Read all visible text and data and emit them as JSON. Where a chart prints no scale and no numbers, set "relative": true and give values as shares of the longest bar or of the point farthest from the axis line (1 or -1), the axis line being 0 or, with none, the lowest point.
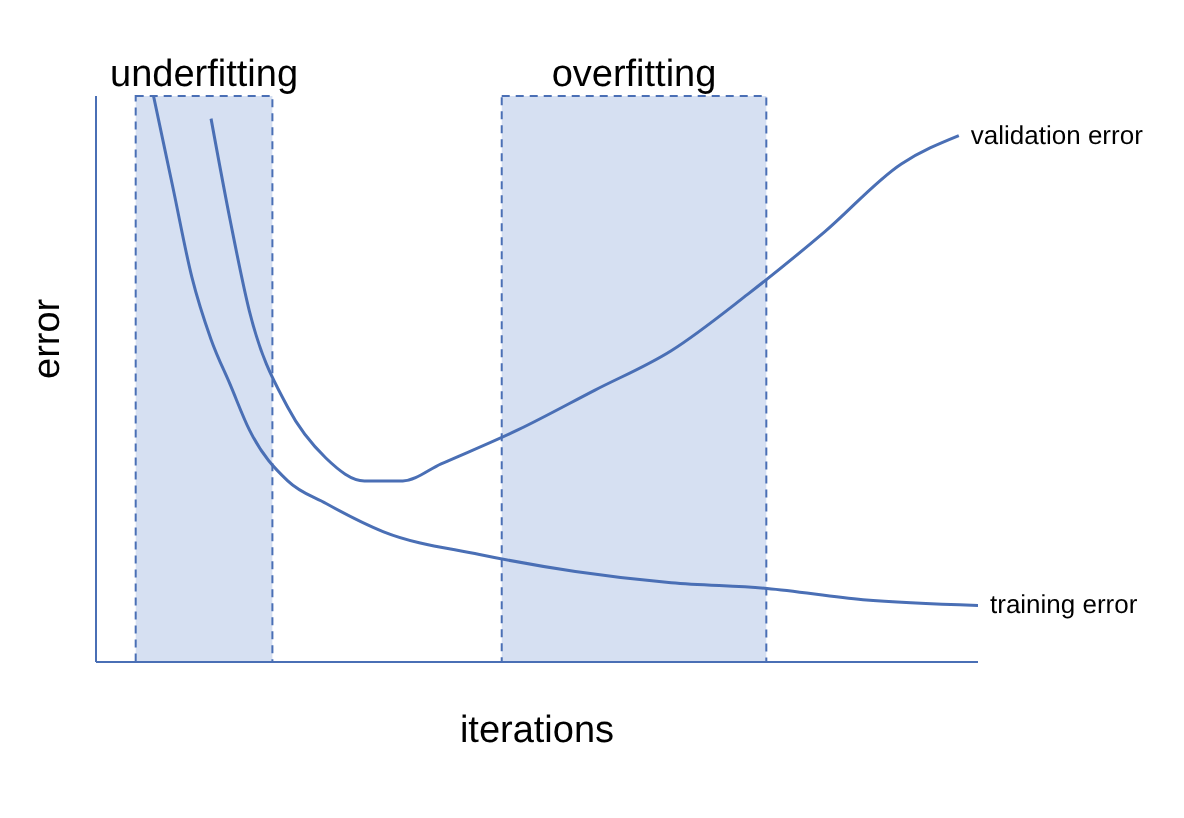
{
  "chart_data": {
    "type": "line",
    "relative": true,
    "xlabel": "iterations",
    "ylabel": "error",
    "legend": false,
    "grid": false,
    "tick_labels": false,
    "categories": [
      null,
      null,
      null,
      null,
      null,
      null,
      null,
      null,
      null,
      null,
      null,
      null,
      null,
      null,
      null,
      null,
      null,
      null,
      null,
      null,
      null,
      null,
      null,
      null,
      null,
      null,
      null,
      null,
      null,
      null,
      null,
      null,
      null,
      null,
      null,
      null,
      null,
      null,
      null,
      null,
      null,
      null,
      null,
      null,
      null,
      null,
      null
    ],
    "series": [
      {
        "name": "validation error",
        "color": "#4a6fb5",
        "values": [
          null,
          null,
          null,
          null,
          null,
          null,
          0.96,
          0.78,
          0.62,
          null,
          0.45,
          null,
          0.36,
          null,
          0.32,
          null,
          0.32,
          null,
          0.35,
          null,
          null,
          null,
          0.41,
          null,
          null,
          null,
          0.48,
          null,
          null,
          null,
          0.55,
          null,
          null,
          null,
          0.65,
          null,
          null,
          null,
          0.76,
          null,
          null,
          null,
          0.88,
          null,
          null,
          0.93,
          null
        ]
      },
      {
        "name": "training error",
        "color": "#4a6fb5",
        "values": [
          null,
          null,
          null,
          1,
          0.84,
          0.68,
          0.57,
          0.49,
          0.41,
          null,
          0.32,
          null,
          0.28,
          null,
          null,
          0.23,
          null,
          null,
          null,
          null,
          0.19,
          null,
          null,
          null,
          null,
          0.16,
          null,
          null,
          null,
          null,
          0.14,
          null,
          null,
          null,
          null,
          0.13,
          null,
          null,
          null,
          null,
          0.11,
          null,
          null,
          null,
          null,
          null,
          0.1
        ]
      }
    ],
    "annotations": [
      "underfitting",
      "overfitting"
    ]
  }
}
